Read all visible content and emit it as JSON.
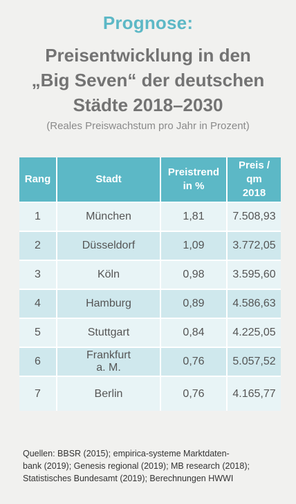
{
  "header": {
    "kicker": "Prognose:",
    "title_line1": "Preisentwicklung in den",
    "title_line2": "„Big Seven“ der deutschen",
    "title_line3": "Städte 2018–2030",
    "subtitle": "(Reales Preiswachstum pro Jahr in Prozent)"
  },
  "table": {
    "headers": {
      "rang": "Rang",
      "stadt": "Stadt",
      "trend_line1": "Preistrend",
      "trend_line2": "in %",
      "preis_line1": "Preis / qm",
      "preis_line2": "2018"
    },
    "rows": [
      {
        "rang": "1",
        "stadt": "München",
        "stadt2": "",
        "trend": "1,81",
        "preis": "7.508,93"
      },
      {
        "rang": "2",
        "stadt": "Düsseldorf",
        "stadt2": "",
        "trend": "1,09",
        "preis": "3.772,05"
      },
      {
        "rang": "3",
        "stadt": "Köln",
        "stadt2": "",
        "trend": "0,98",
        "preis": "3.595,60"
      },
      {
        "rang": "4",
        "stadt": "Hamburg",
        "stadt2": "",
        "trend": "0,89",
        "preis": "4.586,63"
      },
      {
        "rang": "5",
        "stadt": "Stuttgart",
        "stadt2": "",
        "trend": "0,84",
        "preis": "4.225,05"
      },
      {
        "rang": "6",
        "stadt": "Frankfurt",
        "stadt2": "a. M.",
        "trend": "0,76",
        "preis": "5.057,52"
      },
      {
        "rang": "7",
        "stadt": "Berlin",
        "stadt2": "",
        "trend": "0,76",
        "preis": "4.165,77"
      }
    ]
  },
  "sources": {
    "line1": "Quellen: BBSR (2015); empirica-systeme Marktdaten-",
    "line2": "bank (2019); Genesis regional (2019); MB research (2018);",
    "line3": "Statistisches Bundesamt (2019); Berechnungen HWWI"
  },
  "colors": {
    "accent": "#5cb8c6",
    "row_light": "#e8f4f6",
    "row_dark": "#cfe8ed",
    "background": "#f1f1ef"
  }
}
